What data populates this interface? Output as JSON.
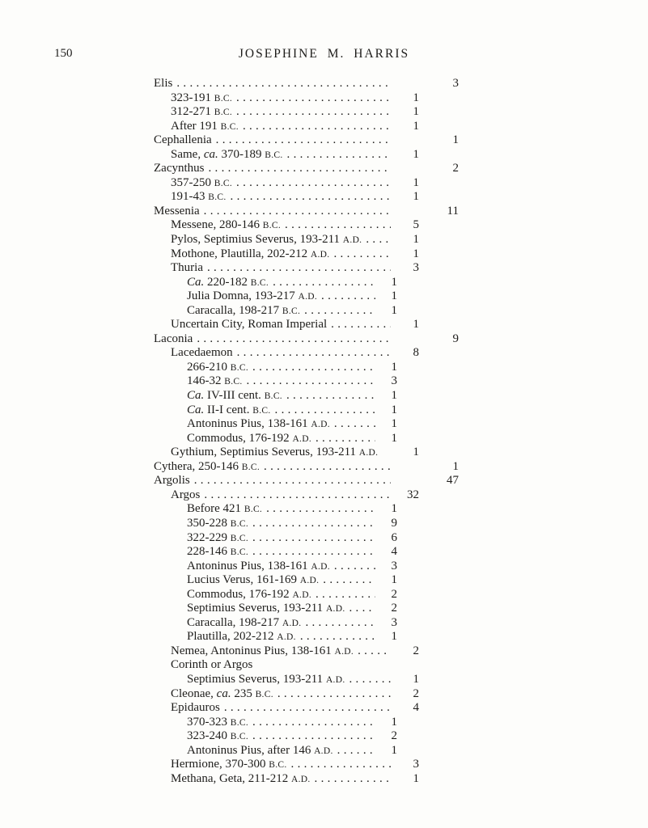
{
  "page": {
    "number": "150",
    "running_head": "JOSEPHINE M. HARRIS"
  },
  "colors": {
    "ink": "#1e1d1b",
    "paper": "#fdfdfb"
  },
  "list": {
    "count_columns": 3,
    "rows": [
      {
        "indent": 1,
        "col": 1,
        "dots": true,
        "count": "3",
        "parts": [
          {
            "t": "Elis",
            "s": "n"
          }
        ]
      },
      {
        "indent": 2,
        "col": 2,
        "dots": true,
        "count": "1",
        "parts": [
          {
            "t": "323-191 ",
            "s": "n"
          },
          {
            "t": "B.C.",
            "s": "c"
          }
        ]
      },
      {
        "indent": 2,
        "col": 2,
        "dots": true,
        "count": "1",
        "parts": [
          {
            "t": "312-271 ",
            "s": "n"
          },
          {
            "t": "B.C.",
            "s": "c"
          }
        ]
      },
      {
        "indent": 2,
        "col": 2,
        "dots": true,
        "count": "1",
        "parts": [
          {
            "t": "After 191 ",
            "s": "n"
          },
          {
            "t": "B.C.",
            "s": "c"
          }
        ]
      },
      {
        "indent": 1,
        "col": 1,
        "dots": true,
        "count": "1",
        "parts": [
          {
            "t": "Cephallenia",
            "s": "n"
          }
        ]
      },
      {
        "indent": 2,
        "col": 2,
        "dots": true,
        "count": "1",
        "parts": [
          {
            "t": "Same, ",
            "s": "n"
          },
          {
            "t": "ca.",
            "s": "i"
          },
          {
            "t": " 370-189 ",
            "s": "n"
          },
          {
            "t": "B.C.",
            "s": "c"
          }
        ]
      },
      {
        "indent": 1,
        "col": 1,
        "dots": true,
        "count": "2",
        "parts": [
          {
            "t": "Zacynthus",
            "s": "n"
          }
        ]
      },
      {
        "indent": 2,
        "col": 2,
        "dots": true,
        "count": "1",
        "parts": [
          {
            "t": "357-250 ",
            "s": "n"
          },
          {
            "t": "B.C.",
            "s": "c"
          }
        ]
      },
      {
        "indent": 2,
        "col": 2,
        "dots": true,
        "count": "1",
        "parts": [
          {
            "t": "191-43 ",
            "s": "n"
          },
          {
            "t": "B.C.",
            "s": "c"
          }
        ]
      },
      {
        "indent": 1,
        "col": 1,
        "dots": true,
        "count": "11",
        "parts": [
          {
            "t": "Messenia",
            "s": "n"
          }
        ]
      },
      {
        "indent": 2,
        "col": 2,
        "dots": true,
        "count": "5",
        "parts": [
          {
            "t": "Messene, 280-146 ",
            "s": "n"
          },
          {
            "t": "B.C.",
            "s": "c"
          }
        ]
      },
      {
        "indent": 2,
        "col": 2,
        "dots": true,
        "count": "1",
        "parts": [
          {
            "t": "Pylos, Septimius Severus, 193-211 ",
            "s": "n"
          },
          {
            "t": "A.D.",
            "s": "c"
          }
        ]
      },
      {
        "indent": 2,
        "col": 2,
        "dots": true,
        "count": "1",
        "parts": [
          {
            "t": "Mothone, Plautilla, 202-212 ",
            "s": "n"
          },
          {
            "t": "A.D.",
            "s": "c"
          }
        ]
      },
      {
        "indent": 2,
        "col": 2,
        "dots": true,
        "count": "3",
        "parts": [
          {
            "t": "Thuria",
            "s": "n"
          }
        ]
      },
      {
        "indent": 3,
        "col": 3,
        "dots": true,
        "count": "1",
        "parts": [
          {
            "t": "Ca.",
            "s": "i"
          },
          {
            "t": " 220-182 ",
            "s": "n"
          },
          {
            "t": "B.C.",
            "s": "c"
          }
        ]
      },
      {
        "indent": 3,
        "col": 3,
        "dots": true,
        "count": "1",
        "parts": [
          {
            "t": "Julia Domna, 193-217 ",
            "s": "n"
          },
          {
            "t": "A.D.",
            "s": "c"
          }
        ]
      },
      {
        "indent": 3,
        "col": 3,
        "dots": true,
        "count": "1",
        "parts": [
          {
            "t": "Caracalla, 198-217 ",
            "s": "n"
          },
          {
            "t": "B.C.",
            "s": "c"
          }
        ]
      },
      {
        "indent": 2,
        "col": 2,
        "dots": true,
        "count": "1",
        "parts": [
          {
            "t": "Uncertain City, Roman Imperial",
            "s": "n"
          }
        ]
      },
      {
        "indent": 1,
        "col": 1,
        "dots": true,
        "count": "9",
        "parts": [
          {
            "t": "Laconia",
            "s": "n"
          }
        ]
      },
      {
        "indent": 2,
        "col": 2,
        "dots": true,
        "count": "8",
        "parts": [
          {
            "t": "Lacedaemon",
            "s": "n"
          }
        ]
      },
      {
        "indent": 3,
        "col": 3,
        "dots": true,
        "count": "1",
        "parts": [
          {
            "t": "266-210 ",
            "s": "n"
          },
          {
            "t": "B.C.",
            "s": "c"
          }
        ]
      },
      {
        "indent": 3,
        "col": 3,
        "dots": true,
        "count": "3",
        "parts": [
          {
            "t": "146-32 ",
            "s": "n"
          },
          {
            "t": "B.C.",
            "s": "c"
          }
        ]
      },
      {
        "indent": 3,
        "col": 3,
        "dots": true,
        "count": "1",
        "parts": [
          {
            "t": "Ca.",
            "s": "i"
          },
          {
            "t": " IV-III cent. ",
            "s": "n"
          },
          {
            "t": "B.C.",
            "s": "c"
          }
        ]
      },
      {
        "indent": 3,
        "col": 3,
        "dots": true,
        "count": "1",
        "parts": [
          {
            "t": "Ca.",
            "s": "i"
          },
          {
            "t": " II-I cent. ",
            "s": "n"
          },
          {
            "t": "B.C.",
            "s": "c"
          }
        ]
      },
      {
        "indent": 3,
        "col": 3,
        "dots": true,
        "count": "1",
        "parts": [
          {
            "t": "Antoninus Pius, 138-161 ",
            "s": "n"
          },
          {
            "t": "A.D.",
            "s": "c"
          }
        ]
      },
      {
        "indent": 3,
        "col": 3,
        "dots": true,
        "count": "1",
        "parts": [
          {
            "t": "Commodus, 176-192 ",
            "s": "n"
          },
          {
            "t": "A.D.",
            "s": "c"
          }
        ]
      },
      {
        "indent": 2,
        "col": 2,
        "dots": false,
        "count": "1",
        "parts": [
          {
            "t": "Gythium, Septimius Severus, 193-211 ",
            "s": "n"
          },
          {
            "t": "A.D.",
            "s": "c"
          }
        ]
      },
      {
        "indent": 1,
        "col": 1,
        "dots": true,
        "count": "1",
        "parts": [
          {
            "t": "Cythera, 250-146 ",
            "s": "n"
          },
          {
            "t": "B.C.",
            "s": "c"
          }
        ]
      },
      {
        "indent": 1,
        "col": 1,
        "dots": true,
        "count": "47",
        "parts": [
          {
            "t": "Argolis",
            "s": "n"
          }
        ]
      },
      {
        "indent": 2,
        "col": 2,
        "dots": true,
        "count": "32",
        "parts": [
          {
            "t": "Argos",
            "s": "n"
          }
        ]
      },
      {
        "indent": 3,
        "col": 3,
        "dots": true,
        "count": "1",
        "parts": [
          {
            "t": "Before 421 ",
            "s": "n"
          },
          {
            "t": "B.C.",
            "s": "c"
          }
        ]
      },
      {
        "indent": 3,
        "col": 3,
        "dots": true,
        "count": "9",
        "parts": [
          {
            "t": "350-228 ",
            "s": "n"
          },
          {
            "t": "B.C.",
            "s": "c"
          }
        ]
      },
      {
        "indent": 3,
        "col": 3,
        "dots": true,
        "count": "6",
        "parts": [
          {
            "t": "322-229 ",
            "s": "n"
          },
          {
            "t": "B.C.",
            "s": "c"
          }
        ]
      },
      {
        "indent": 3,
        "col": 3,
        "dots": true,
        "count": "4",
        "parts": [
          {
            "t": "228-146 ",
            "s": "n"
          },
          {
            "t": "B.C.",
            "s": "c"
          }
        ]
      },
      {
        "indent": 3,
        "col": 3,
        "dots": true,
        "count": "3",
        "parts": [
          {
            "t": "Antoninus Pius, 138-161 ",
            "s": "n"
          },
          {
            "t": "A.D.",
            "s": "c"
          }
        ]
      },
      {
        "indent": 3,
        "col": 3,
        "dots": true,
        "count": "1",
        "parts": [
          {
            "t": "Lucius Verus, 161-169 ",
            "s": "n"
          },
          {
            "t": "A.D.",
            "s": "c"
          }
        ]
      },
      {
        "indent": 3,
        "col": 3,
        "dots": true,
        "count": "2",
        "parts": [
          {
            "t": "Commodus, 176-192 ",
            "s": "n"
          },
          {
            "t": "A.D.",
            "s": "c"
          }
        ]
      },
      {
        "indent": 3,
        "col": 3,
        "dots": true,
        "count": "2",
        "parts": [
          {
            "t": "Septimius Severus, 193-211 ",
            "s": "n"
          },
          {
            "t": "A.D.",
            "s": "c"
          }
        ]
      },
      {
        "indent": 3,
        "col": 3,
        "dots": true,
        "count": "3",
        "parts": [
          {
            "t": "Caracalla, 198-217 ",
            "s": "n"
          },
          {
            "t": "A.D.",
            "s": "c"
          }
        ]
      },
      {
        "indent": 3,
        "col": 3,
        "dots": true,
        "count": "1",
        "parts": [
          {
            "t": "Plautilla, 202-212 ",
            "s": "n"
          },
          {
            "t": "A.D.",
            "s": "c"
          }
        ]
      },
      {
        "indent": 2,
        "col": 2,
        "dots": true,
        "count": "2",
        "parts": [
          {
            "t": "Nemea, Antoninus Pius, 138-161 ",
            "s": "n"
          },
          {
            "t": "A.D.",
            "s": "c"
          }
        ]
      },
      {
        "indent": 2,
        "col": 0,
        "dots": false,
        "count": "",
        "parts": [
          {
            "t": "Corinth or Argos",
            "s": "n"
          }
        ]
      },
      {
        "indent": 3,
        "col": 2,
        "dots": true,
        "count": "1",
        "parts": [
          {
            "t": "Septimius Severus, 193-211 ",
            "s": "n"
          },
          {
            "t": "A.D.",
            "s": "c"
          }
        ]
      },
      {
        "indent": 2,
        "col": 2,
        "dots": true,
        "count": "2",
        "parts": [
          {
            "t": "Cleonae, ",
            "s": "n"
          },
          {
            "t": "ca.",
            "s": "i"
          },
          {
            "t": " 235 ",
            "s": "n"
          },
          {
            "t": "B.C.",
            "s": "c"
          }
        ]
      },
      {
        "indent": 2,
        "col": 2,
        "dots": true,
        "count": "4",
        "parts": [
          {
            "t": "Epidauros",
            "s": "n"
          }
        ]
      },
      {
        "indent": 3,
        "col": 3,
        "dots": true,
        "count": "1",
        "parts": [
          {
            "t": "370-323 ",
            "s": "n"
          },
          {
            "t": "B.C.",
            "s": "c"
          }
        ]
      },
      {
        "indent": 3,
        "col": 3,
        "dots": true,
        "count": "2",
        "parts": [
          {
            "t": "323-240 ",
            "s": "n"
          },
          {
            "t": "B.C.",
            "s": "c"
          }
        ]
      },
      {
        "indent": 3,
        "col": 3,
        "dots": true,
        "count": "1",
        "parts": [
          {
            "t": "Antoninus Pius, after 146 ",
            "s": "n"
          },
          {
            "t": "A.D.",
            "s": "c"
          }
        ]
      },
      {
        "indent": 2,
        "col": 2,
        "dots": true,
        "count": "3",
        "parts": [
          {
            "t": "Hermione, 370-300 ",
            "s": "n"
          },
          {
            "t": "B.C.",
            "s": "c"
          }
        ]
      },
      {
        "indent": 2,
        "col": 2,
        "dots": true,
        "count": "1",
        "parts": [
          {
            "t": "Methana, Geta, 211-212 ",
            "s": "n"
          },
          {
            "t": "A.D.",
            "s": "c"
          }
        ]
      }
    ]
  }
}
